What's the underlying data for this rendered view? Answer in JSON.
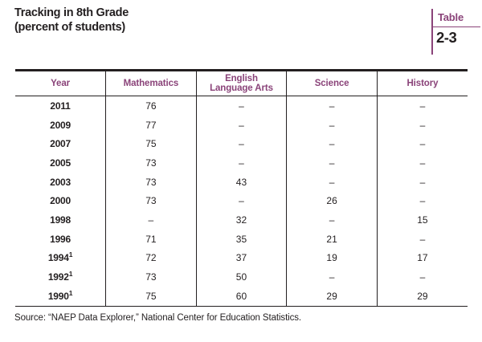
{
  "title": {
    "line1": "Tracking in 8th Grade",
    "line2": "(percent of students)"
  },
  "table_label": {
    "word": "Table",
    "number": "2-3"
  },
  "table": {
    "columns": [
      "Year",
      "Mathematics",
      "English Language Arts",
      "Science",
      "History"
    ],
    "rows": [
      {
        "year": "2011",
        "sup": "",
        "values": [
          "76",
          "–",
          "–",
          "–"
        ]
      },
      {
        "year": "2009",
        "sup": "",
        "values": [
          "77",
          "–",
          "–",
          "–"
        ]
      },
      {
        "year": "2007",
        "sup": "",
        "values": [
          "75",
          "–",
          "–",
          "–"
        ]
      },
      {
        "year": "2005",
        "sup": "",
        "values": [
          "73",
          "–",
          "–",
          "–"
        ]
      },
      {
        "year": "2003",
        "sup": "",
        "values": [
          "73",
          "43",
          "–",
          "–"
        ]
      },
      {
        "year": "2000",
        "sup": "",
        "values": [
          "73",
          "–",
          "26",
          "–"
        ]
      },
      {
        "year": "1998",
        "sup": "",
        "values": [
          "–",
          "32",
          "–",
          "15"
        ]
      },
      {
        "year": "1996",
        "sup": "",
        "values": [
          "71",
          "35",
          "21",
          "–"
        ]
      },
      {
        "year": "1994",
        "sup": "1",
        "values": [
          "72",
          "37",
          "19",
          "17"
        ]
      },
      {
        "year": "1992",
        "sup": "1",
        "values": [
          "73",
          "50",
          "–",
          "–"
        ]
      },
      {
        "year": "1990",
        "sup": "1",
        "values": [
          "75",
          "60",
          "29",
          "29"
        ]
      }
    ]
  },
  "source": "Source: “NAEP Data Explorer,” National Center for Education Statistics.",
  "colors": {
    "accent": "#8A4379",
    "ink": "#231F20"
  }
}
